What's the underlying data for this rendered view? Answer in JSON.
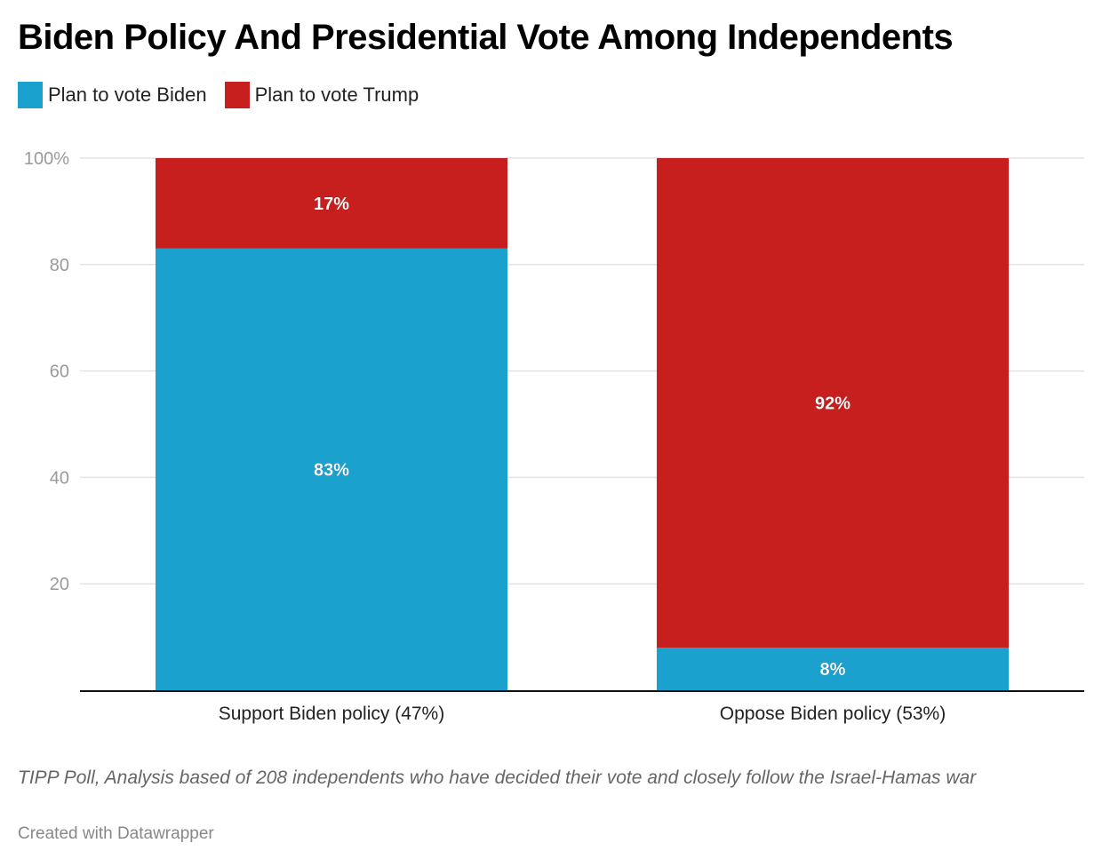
{
  "title": "Biden Policy And Presidential Vote Among Independents",
  "legend": [
    {
      "label": "Plan to vote Biden",
      "color": "#1aa1cd"
    },
    {
      "label": "Plan to vote Trump",
      "color": "#c71e1e"
    }
  ],
  "notes": "TIPP Poll, Analysis based of 208 independents who have decided their vote and closely follow the Israel-Hamas war",
  "credit": "Created with Datawrapper",
  "chart_data": {
    "type": "bar",
    "stacked": true,
    "title": "Biden Policy And Presidential Vote Among Independents",
    "xlabel": "",
    "ylabel": "",
    "categories": [
      "Support Biden policy (47%)",
      "Oppose Biden policy (53%)"
    ],
    "series": [
      {
        "name": "Plan to vote Biden",
        "color": "#1aa1cd",
        "values": [
          83,
          8
        ],
        "labels": [
          "83%",
          "8%"
        ]
      },
      {
        "name": "Plan to vote Trump",
        "color": "#c71e1e",
        "values": [
          17,
          92
        ],
        "labels": [
          "17%",
          "92%"
        ]
      }
    ],
    "ylim": [
      0,
      100
    ],
    "yticks": [
      20,
      40,
      60,
      80,
      100
    ],
    "ytick_labels": [
      "20",
      "40",
      "60",
      "80",
      "100%"
    ],
    "grid": true,
    "legend_position": "top-left"
  }
}
